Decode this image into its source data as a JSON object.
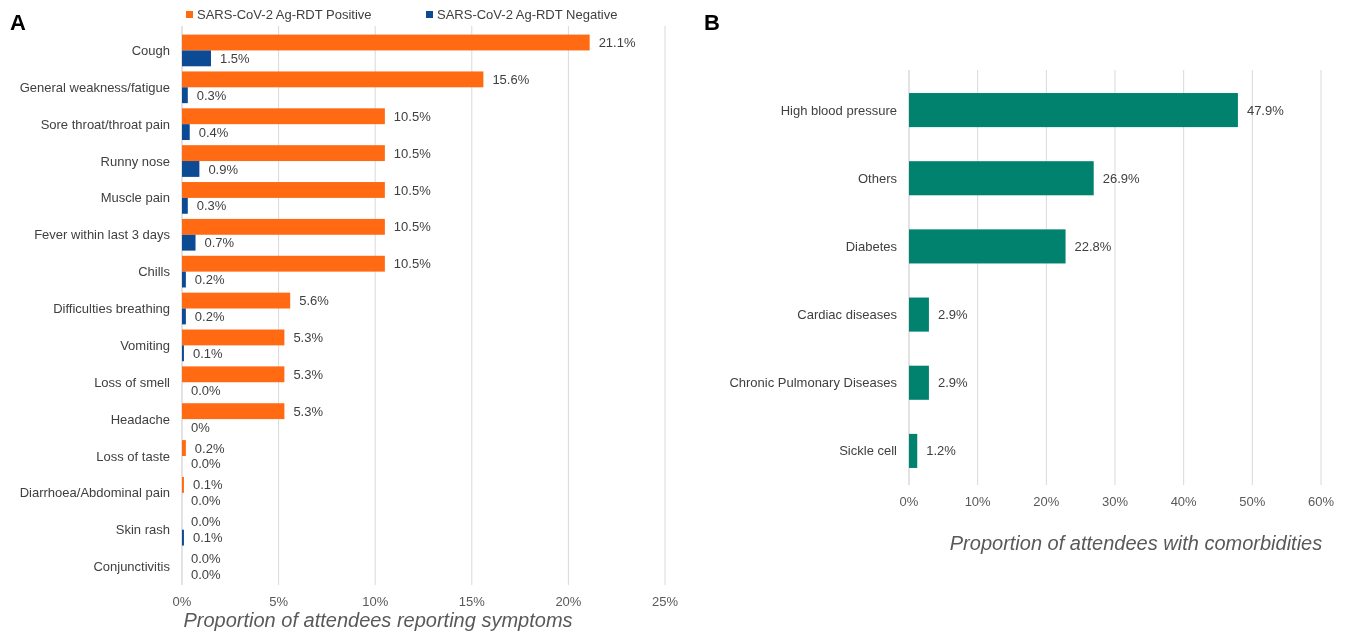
{
  "chart_data": [
    {
      "type": "bar",
      "title": "A",
      "orientation": "horizontal",
      "xlabel": "Proportion of attendees reporting symptoms",
      "categories": [
        "Cough",
        "General weakness/fatigue",
        "Sore throat/throat pain",
        "Runny nose",
        "Muscle pain",
        "Fever within last 3 days",
        "Chills",
        "Difficulties breathing",
        "Vomiting",
        "Loss of smell",
        "Headache",
        "Loss of taste",
        "Diarrhoea/Abdominal pain",
        "Skin rash",
        "Conjunctivitis"
      ],
      "series": [
        {
          "name": "SARS-CoV-2 Ag-RDT Positive",
          "color": "#ff6a13",
          "values": [
            21.1,
            15.6,
            10.5,
            10.5,
            10.5,
            10.5,
            10.5,
            5.6,
            5.3,
            5.3,
            5.3,
            0.2,
            0.1,
            0.0,
            0.0
          ],
          "value_labels": [
            "21.1%",
            "15.6%",
            "10.5%",
            "10.5%",
            "10.5%",
            "10.5%",
            "10.5%",
            "5.6%",
            "5.3%",
            "5.3%",
            "5.3%",
            "0.2%",
            "0.1%",
            "0.0%",
            "0.0%"
          ]
        },
        {
          "name": "SARS-CoV-2 Ag-RDT Negative",
          "color": "#0d4a94",
          "values": [
            1.5,
            0.3,
            0.4,
            0.9,
            0.3,
            0.7,
            0.2,
            0.2,
            0.1,
            0.0,
            0,
            0.0,
            0.0,
            0.1,
            0.0
          ],
          "value_labels": [
            "1.5%",
            "0.3%",
            "0.4%",
            "0.9%",
            "0.3%",
            "0.7%",
            "0.2%",
            "0.2%",
            "0.1%",
            "0.0%",
            "0%",
            "0.0%",
            "0.0%",
            "0.1%",
            "0.0%"
          ]
        }
      ],
      "xlim": [
        0,
        25
      ],
      "xticks": [
        {
          "value": 0,
          "label": "0%"
        },
        {
          "value": 5,
          "label": "5%"
        },
        {
          "value": 10,
          "label": "10%"
        },
        {
          "value": 15,
          "label": "15%"
        },
        {
          "value": 20,
          "label": "20%"
        },
        {
          "value": 25,
          "label": "25%"
        }
      ],
      "grid": "x",
      "legend": "top"
    },
    {
      "type": "bar",
      "title": "B",
      "orientation": "horizontal",
      "xlabel": "Proportion of attendees with comorbidities",
      "categories": [
        "High blood pressure",
        "Others",
        "Diabetes",
        "Cardiac diseases",
        "Chronic Pulmonary Diseases",
        "Sickle cell"
      ],
      "series": [
        {
          "color": "#00826f",
          "values": [
            47.9,
            26.9,
            22.8,
            2.9,
            2.9,
            1.2
          ],
          "value_labels": [
            "47.9%",
            "26.9%",
            "22.8%",
            "2.9%",
            "2.9%",
            "1.2%"
          ]
        }
      ],
      "xlim": [
        0,
        60
      ],
      "xticks": [
        {
          "value": 0,
          "label": "0%"
        },
        {
          "value": 10,
          "label": "10%"
        },
        {
          "value": 20,
          "label": "20%"
        },
        {
          "value": 30,
          "label": "30%"
        },
        {
          "value": 40,
          "label": "40%"
        },
        {
          "value": 50,
          "label": "50%"
        },
        {
          "value": 60,
          "label": "60%"
        }
      ],
      "grid": "x"
    }
  ]
}
